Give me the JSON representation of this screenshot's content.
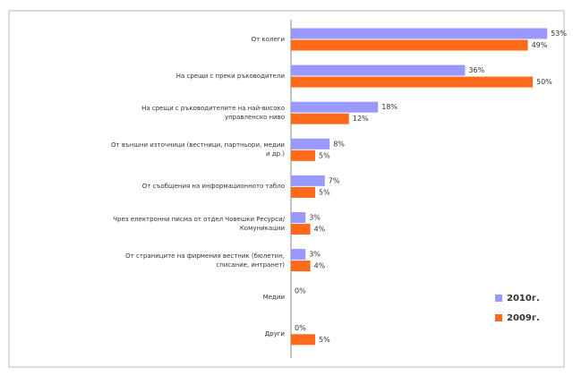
{
  "chart_data": {
    "type": "bar",
    "orientation": "horizontal",
    "categories": [
      "От колеги",
      "На срещи с преки ръководители",
      "На срещи с ръководителите на най-високо управленско ниво",
      "От външни източници (вестници, партньори, медии и др.)",
      "От съобщения на информационното табло",
      "Чрез електронни писма от отдел Човешки Ресурси/Комуникации",
      "От страниците на фирмения вестник (бюлетин, списание, интранет)",
      "Медии",
      "Други"
    ],
    "series": [
      {
        "name": "2010г.",
        "color": "#9999ff",
        "values": [
          53,
          36,
          18,
          8,
          7,
          3,
          3,
          0,
          0
        ],
        "value_labels": [
          "53%",
          "36%",
          "18%",
          "8%",
          "7%",
          "3%",
          "3%",
          "0%",
          "0%"
        ]
      },
      {
        "name": "2009г.",
        "color": "#ff6a1a",
        "values": [
          49,
          50,
          12,
          5,
          5,
          4,
          4,
          null,
          5
        ],
        "value_labels": [
          "49%",
          "50%",
          "12%",
          "5%",
          "5%",
          "4%",
          "4%",
          null,
          "5%"
        ]
      }
    ],
    "legend": "bottom-right"
  }
}
